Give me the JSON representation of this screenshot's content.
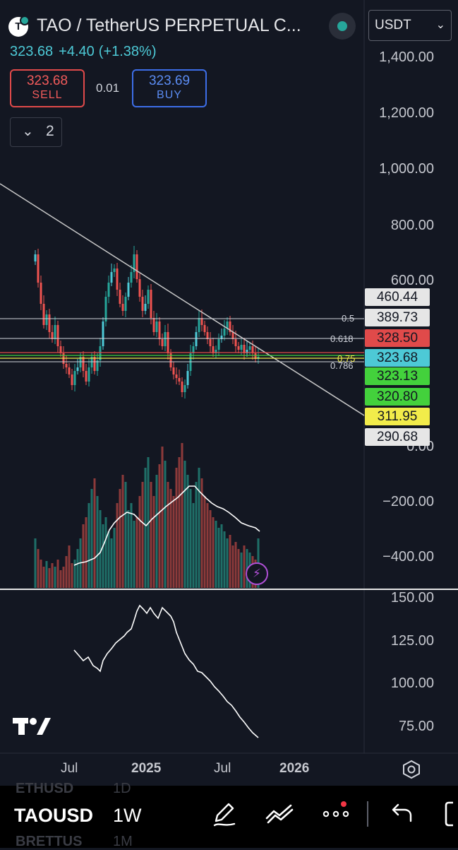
{
  "header": {
    "title": "TAO / TetherUS PERPETUAL C...",
    "logo_glyph": "T",
    "currency": "USDT",
    "currency_chevron": "⌄"
  },
  "quote": {
    "last": "323.68",
    "change": "+4.40",
    "change_pct": "(+1.38%)"
  },
  "trade": {
    "sell_price": "323.68",
    "sell_label": "SELL",
    "spread": "0.01",
    "buy_price": "323.69",
    "buy_label": "BUY"
  },
  "indicators_toggle": {
    "chevron": "⌄",
    "count": "2"
  },
  "price_axis": [
    "1,400.00",
    "1,200.00",
    "1,000.00",
    "800.00",
    "600.00",
    "0.00",
    "−200.00",
    "−400.00"
  ],
  "price_tags": [
    {
      "value": "460.44",
      "color": "#e6e6e6"
    },
    {
      "value": "389.73",
      "color": "#e6e6e6"
    },
    {
      "value": "328.50",
      "color": "#e04a4a"
    },
    {
      "value": "323.68",
      "color": "#4dc9d6"
    },
    {
      "value": "323.13",
      "color": "#43d13c"
    },
    {
      "value": "320.80",
      "color": "#43d13c"
    },
    {
      "value": "311.95",
      "color": "#f2ec4a"
    },
    {
      "value": "290.68",
      "color": "#e6e6e6"
    }
  ],
  "fib_levels": [
    {
      "label": "0.5",
      "color": "#d1d4dc"
    },
    {
      "label": "0.618",
      "color": "#d1d4dc"
    },
    {
      "label": "0.75",
      "color": "#f2ec4a"
    },
    {
      "label": "0.786",
      "color": "#d1d4dc"
    }
  ],
  "oscillator_axis": [
    "150.00",
    "125.00",
    "100.00",
    "75.00"
  ],
  "time_axis": [
    {
      "label": "Jul",
      "bold": false
    },
    {
      "label": "2025",
      "bold": true
    },
    {
      "label": "Jul",
      "bold": false
    },
    {
      "label": "2026",
      "bold": true
    }
  ],
  "bottom_bar": {
    "symbol_prev": "ETHUSD",
    "symbol": "TAOUSD",
    "symbol_next": "BRETTUS",
    "tf_prev": "1D",
    "timeframe": "1W",
    "tf_next": "1M"
  },
  "colors": {
    "background": "#131722",
    "up": "#26a69a",
    "up_bright": "#4dc9d6",
    "down": "#ef5350",
    "trendline": "#c8c8c8"
  },
  "icons": [
    "tradingview-logo-icon",
    "pen-icon",
    "trend-tools-icon",
    "more-icon",
    "undo-icon",
    "settings-hexagon-icon",
    "lightning-icon"
  ]
}
